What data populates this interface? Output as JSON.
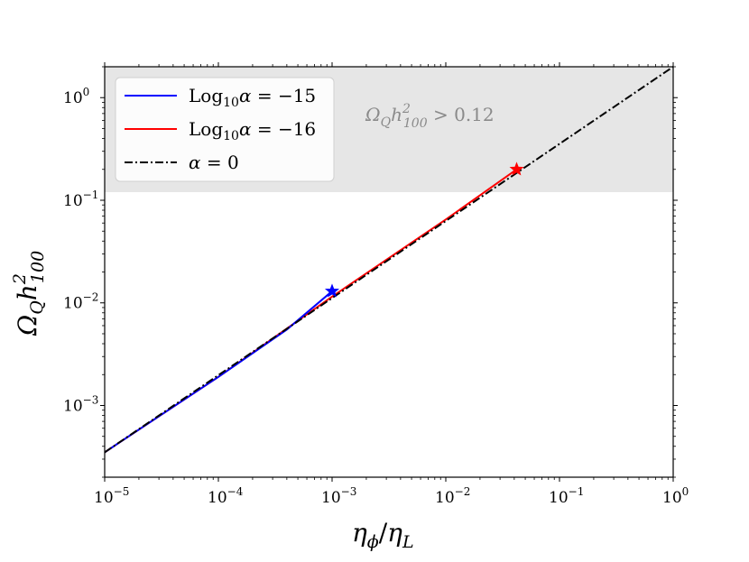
{
  "chart_data": {
    "type": "line",
    "xscale": "log",
    "yscale": "log",
    "xlim": [
      1e-05,
      1
    ],
    "ylim": [
      0.0002,
      2
    ],
    "x_ticks": [
      {
        "value": 1e-05,
        "base": "10",
        "exp": "−5"
      },
      {
        "value": 0.0001,
        "base": "10",
        "exp": "−4"
      },
      {
        "value": 0.001,
        "base": "10",
        "exp": "−3"
      },
      {
        "value": 0.01,
        "base": "10",
        "exp": "−2"
      },
      {
        "value": 0.1,
        "base": "10",
        "exp": "−1"
      },
      {
        "value": 1,
        "base": "10",
        "exp": "0"
      }
    ],
    "y_ticks": [
      {
        "value": 0.001,
        "base": "10",
        "exp": "−3"
      },
      {
        "value": 0.01,
        "base": "10",
        "exp": "−2"
      },
      {
        "value": 0.1,
        "base": "10",
        "exp": "−1"
      },
      {
        "value": 1,
        "base": "10",
        "exp": "0"
      }
    ],
    "xlabel": "η_ϕ/η_L",
    "ylabel": "Ω_Q h²_100",
    "shaded_region": {
      "y_min": 0.12,
      "y_max": 2,
      "label": "Ω_Q h²_100 > 0.12",
      "color": "#e6e6e6"
    },
    "legend": {
      "placement": "upper left"
    },
    "series": [
      {
        "name": "Log10α = −15",
        "color": "#0000ff",
        "style": "solid",
        "x": [
          1e-05,
          0.0001,
          0.0004,
          0.001
        ],
        "y": [
          0.00035,
          0.0019,
          0.0055,
          0.013
        ],
        "marker": {
          "x": 0.001,
          "y": 0.013,
          "symbol": "star"
        }
      },
      {
        "name": "Log10α = −16",
        "color": "#ff0000",
        "style": "solid",
        "x": [
          1e-05,
          0.0001,
          0.001,
          0.01,
          0.042
        ],
        "y": [
          0.00035,
          0.0019,
          0.0115,
          0.065,
          0.2
        ],
        "marker": {
          "x": 0.042,
          "y": 0.2,
          "symbol": "star"
        }
      },
      {
        "name": "α = 0",
        "color": "#000000",
        "style": "dashdot",
        "x": [
          1e-05,
          1
        ],
        "y": [
          0.00035,
          2
        ]
      }
    ]
  }
}
